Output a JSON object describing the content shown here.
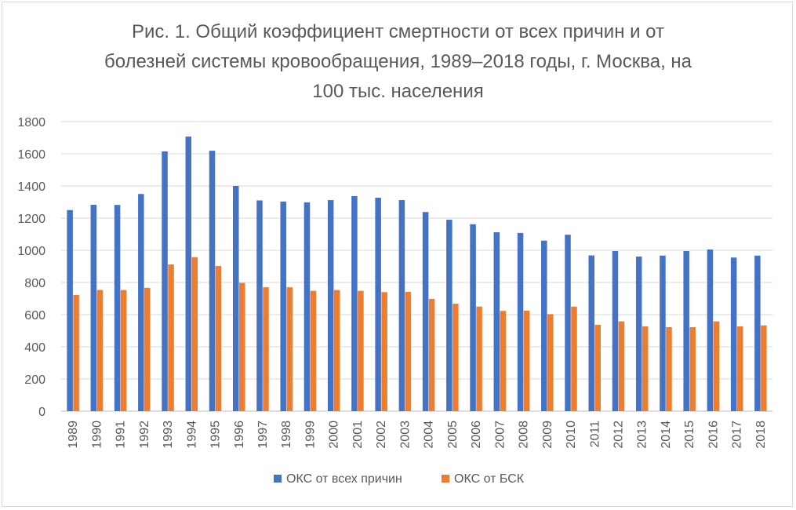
{
  "chart_data": {
    "type": "bar",
    "title_lines": [
      "Рис. 1. Общий коэффициент смертности  от всех причин и от",
      "болезней  системы кровообращения, 1989–2018 годы, г. Москва, на",
      "100 тыс.  населения"
    ],
    "xlabel": "",
    "ylabel": "",
    "ylim": [
      0,
      1800
    ],
    "yticks": [
      0,
      200,
      400,
      600,
      800,
      1000,
      1200,
      1400,
      1600,
      1800
    ],
    "grid": true,
    "legend_position": "bottom",
    "categories": [
      "1989",
      "1990",
      "1991",
      "1992",
      "1993",
      "1994",
      "1995",
      "1996",
      "1997",
      "1998",
      "1999",
      "2000",
      "2001",
      "2002",
      "2003",
      "2004",
      "2005",
      "2006",
      "2007",
      "2008",
      "2009",
      "2010",
      "2011",
      "2012",
      "2013",
      "2014",
      "2015",
      "2016",
      "2017",
      "2018"
    ],
    "series": [
      {
        "name": "ОКС от всех причин",
        "color": "#4472c4",
        "values": [
          1250,
          1283,
          1282,
          1350,
          1615,
          1707,
          1619,
          1400,
          1310,
          1303,
          1298,
          1312,
          1337,
          1327,
          1312,
          1238,
          1190,
          1162,
          1112,
          1108,
          1060,
          1097,
          968,
          995,
          961,
          967,
          995,
          1005,
          955,
          967
        ]
      },
      {
        "name": "ОКС от БСК",
        "color": "#ed7d31",
        "values": [
          722,
          753,
          753,
          767,
          912,
          957,
          903,
          797,
          770,
          770,
          748,
          753,
          748,
          740,
          742,
          698,
          668,
          650,
          623,
          625,
          603,
          650,
          537,
          558,
          527,
          522,
          522,
          558,
          527,
          533
        ]
      }
    ]
  }
}
